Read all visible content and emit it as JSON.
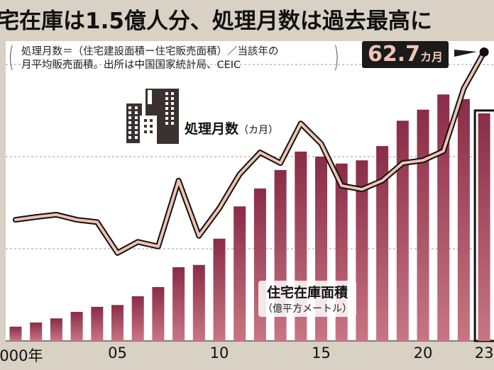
{
  "title": "宅在庫は1.5億人分、処理月数は過去最高に",
  "note": {
    "line1": "処理月数＝（住宅建設面積ー住宅販売面積）／当該年の",
    "line2": "月平均販売面積。出所は中国国家統計局、CEIC"
  },
  "callout": {
    "value": "62.7",
    "unit": "カ月"
  },
  "icons": {
    "building": "building-icon"
  },
  "colors": {
    "bar_top": "#8a2c48",
    "bar_bottom": "#c87683",
    "line_fill": "#efc2b2",
    "line_outline": "#111111",
    "background": "#d8d1c4"
  },
  "chart_data": {
    "type": "bar+line",
    "categories": [
      2000,
      2001,
      2002,
      2003,
      2004,
      2005,
      2006,
      2007,
      2008,
      2009,
      2010,
      2011,
      2012,
      2013,
      2014,
      2015,
      2016,
      2017,
      2018,
      2019,
      2020,
      2021,
      2022,
      2023
    ],
    "x_tick_labels": [
      "2000年",
      "05",
      "10",
      "15",
      "20",
      "23"
    ],
    "x_tick_years": [
      2000,
      2005,
      2010,
      2015,
      2020,
      2023
    ],
    "series": [
      {
        "name": "住宅在庫面積",
        "unit": "（億平方メートル）",
        "type": "bar",
        "values": [
          3.1,
          4.0,
          4.9,
          6.3,
          7.4,
          7.8,
          9.7,
          11.7,
          16.0,
          16.5,
          22.2,
          29.2,
          33.1,
          37.1,
          41.1,
          40.0,
          38.5,
          39.2,
          42.3,
          47.8,
          50.2,
          53.5,
          52.5,
          49.4
        ]
      },
      {
        "name": "処理月数",
        "unit": "（カ月）",
        "type": "line",
        "values": [
          26.3,
          26.9,
          27.4,
          26.3,
          25.8,
          19.1,
          21.5,
          20.5,
          34.8,
          22.8,
          28.8,
          36.2,
          40.9,
          38.6,
          47.2,
          42.8,
          33.7,
          32.9,
          34.8,
          38.6,
          39.2,
          41.2,
          54.8,
          62.7
        ]
      }
    ],
    "ylim": [
      0,
      65
    ],
    "gridlines": [
      20,
      40,
      60
    ],
    "grid": true,
    "highlight": 2023
  }
}
